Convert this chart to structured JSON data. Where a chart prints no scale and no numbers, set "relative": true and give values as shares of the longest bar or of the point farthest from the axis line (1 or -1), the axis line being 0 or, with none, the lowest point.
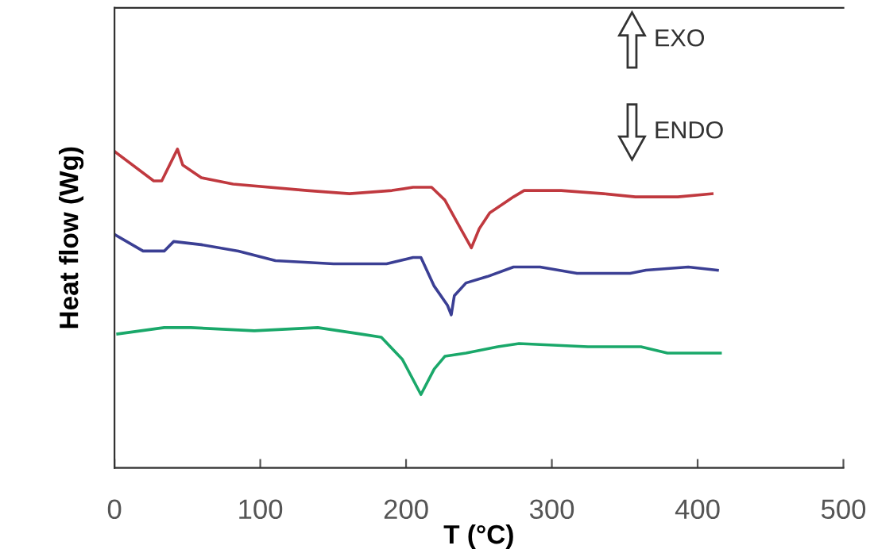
{
  "chart_data": {
    "type": "line",
    "relative": true,
    "xlabel": "T (°C)",
    "ylabel": "Heat flow (Wg)",
    "xlim": [
      0,
      500
    ],
    "xticks": [
      0,
      100,
      200,
      300,
      400,
      500
    ],
    "tick_labels": "x",
    "grid": false,
    "legend": false,
    "marker": "none",
    "line_style": "solid",
    "annotations": [
      "EXO",
      "ENDO"
    ],
    "series": [
      {
        "color": "#c0393f",
        "x": [
          0.8,
          26.9,
          32.4,
          43.2,
          46.8,
          59.6,
          81.4,
          132.1,
          161.2,
          190.3,
          204.8,
          217.5,
          226.6,
          237.5,
          244.8,
          250.2,
          257.4,
          273.7,
          281,
          306.4,
          335.5,
          357.3,
          386.4,
          409.9
        ],
        "values": [
          0.99,
          0.9,
          0.9,
          1.0,
          0.95,
          0.91,
          0.89,
          0.87,
          0.86,
          0.87,
          0.88,
          0.88,
          0.84,
          0.75,
          0.69,
          0.75,
          0.8,
          0.85,
          0.87,
          0.87,
          0.86,
          0.85,
          0.85,
          0.86
        ]
      },
      {
        "color": "#3b3f94",
        "x": [
          0.8,
          19.6,
          34.1,
          40.6,
          59.6,
          85,
          110.4,
          150.3,
          186.6,
          204.8,
          210.2,
          219.3,
          228.4,
          231,
          233.1,
          241.1,
          255.7,
          273.7,
          291.9,
          317.3,
          353.7,
          364.6,
          393.6,
          413.6
        ],
        "values": [
          0.73,
          0.68,
          0.68,
          0.71,
          0.7,
          0.68,
          0.65,
          0.64,
          0.64,
          0.66,
          0.66,
          0.57,
          0.51,
          0.48,
          0.54,
          0.58,
          0.6,
          0.63,
          0.63,
          0.61,
          0.61,
          0.62,
          0.63,
          0.62
        ]
      },
      {
        "color": "#1aa86a",
        "x": [
          2.2,
          34.1,
          52.3,
          95.9,
          139.4,
          168.5,
          183,
          197.5,
          210.2,
          219.3,
          226.6,
          241.1,
          262.9,
          277.5,
          324.8,
          361.1,
          379.3,
          415.6
        ],
        "values": [
          0.42,
          0.44,
          0.44,
          0.43,
          0.44,
          0.42,
          0.41,
          0.34,
          0.23,
          0.31,
          0.35,
          0.36,
          0.38,
          0.39,
          0.38,
          0.38,
          0.36,
          0.36
        ]
      }
    ]
  }
}
